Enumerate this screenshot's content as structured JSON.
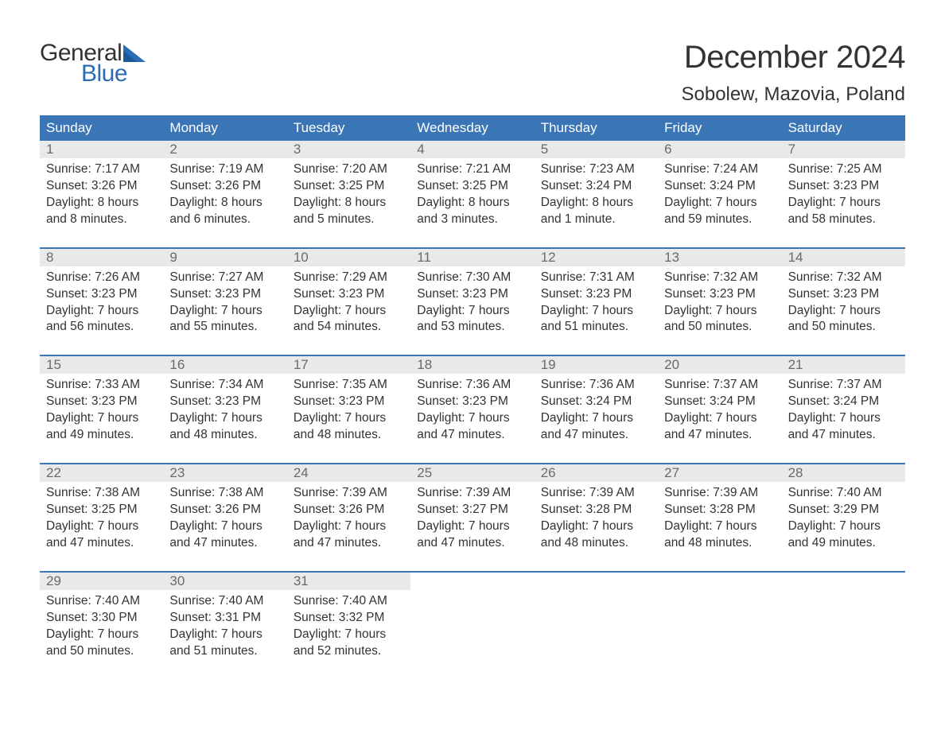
{
  "logo": {
    "word1": "General",
    "word2": "Blue",
    "icon_color": "#2a6db5"
  },
  "title": "December 2024",
  "location": "Sobolew, Mazovia, Poland",
  "colors": {
    "header_bg": "#3a76b6",
    "header_text": "#ffffff",
    "daynum_bg": "#e9e9e9",
    "daynum_text": "#6a6a6a",
    "body_text": "#333333",
    "week_border": "#3a76b6",
    "brand_blue": "#2a6db5",
    "page_bg": "#ffffff"
  },
  "day_names": [
    "Sunday",
    "Monday",
    "Tuesday",
    "Wednesday",
    "Thursday",
    "Friday",
    "Saturday"
  ],
  "weeks": [
    [
      {
        "day": "1",
        "sunrise": "Sunrise: 7:17 AM",
        "sunset": "Sunset: 3:26 PM",
        "dl1": "Daylight: 8 hours",
        "dl2": "and 8 minutes."
      },
      {
        "day": "2",
        "sunrise": "Sunrise: 7:19 AM",
        "sunset": "Sunset: 3:26 PM",
        "dl1": "Daylight: 8 hours",
        "dl2": "and 6 minutes."
      },
      {
        "day": "3",
        "sunrise": "Sunrise: 7:20 AM",
        "sunset": "Sunset: 3:25 PM",
        "dl1": "Daylight: 8 hours",
        "dl2": "and 5 minutes."
      },
      {
        "day": "4",
        "sunrise": "Sunrise: 7:21 AM",
        "sunset": "Sunset: 3:25 PM",
        "dl1": "Daylight: 8 hours",
        "dl2": "and 3 minutes."
      },
      {
        "day": "5",
        "sunrise": "Sunrise: 7:23 AM",
        "sunset": "Sunset: 3:24 PM",
        "dl1": "Daylight: 8 hours",
        "dl2": "and 1 minute."
      },
      {
        "day": "6",
        "sunrise": "Sunrise: 7:24 AM",
        "sunset": "Sunset: 3:24 PM",
        "dl1": "Daylight: 7 hours",
        "dl2": "and 59 minutes."
      },
      {
        "day": "7",
        "sunrise": "Sunrise: 7:25 AM",
        "sunset": "Sunset: 3:23 PM",
        "dl1": "Daylight: 7 hours",
        "dl2": "and 58 minutes."
      }
    ],
    [
      {
        "day": "8",
        "sunrise": "Sunrise: 7:26 AM",
        "sunset": "Sunset: 3:23 PM",
        "dl1": "Daylight: 7 hours",
        "dl2": "and 56 minutes."
      },
      {
        "day": "9",
        "sunrise": "Sunrise: 7:27 AM",
        "sunset": "Sunset: 3:23 PM",
        "dl1": "Daylight: 7 hours",
        "dl2": "and 55 minutes."
      },
      {
        "day": "10",
        "sunrise": "Sunrise: 7:29 AM",
        "sunset": "Sunset: 3:23 PM",
        "dl1": "Daylight: 7 hours",
        "dl2": "and 54 minutes."
      },
      {
        "day": "11",
        "sunrise": "Sunrise: 7:30 AM",
        "sunset": "Sunset: 3:23 PM",
        "dl1": "Daylight: 7 hours",
        "dl2": "and 53 minutes."
      },
      {
        "day": "12",
        "sunrise": "Sunrise: 7:31 AM",
        "sunset": "Sunset: 3:23 PM",
        "dl1": "Daylight: 7 hours",
        "dl2": "and 51 minutes."
      },
      {
        "day": "13",
        "sunrise": "Sunrise: 7:32 AM",
        "sunset": "Sunset: 3:23 PM",
        "dl1": "Daylight: 7 hours",
        "dl2": "and 50 minutes."
      },
      {
        "day": "14",
        "sunrise": "Sunrise: 7:32 AM",
        "sunset": "Sunset: 3:23 PM",
        "dl1": "Daylight: 7 hours",
        "dl2": "and 50 minutes."
      }
    ],
    [
      {
        "day": "15",
        "sunrise": "Sunrise: 7:33 AM",
        "sunset": "Sunset: 3:23 PM",
        "dl1": "Daylight: 7 hours",
        "dl2": "and 49 minutes."
      },
      {
        "day": "16",
        "sunrise": "Sunrise: 7:34 AM",
        "sunset": "Sunset: 3:23 PM",
        "dl1": "Daylight: 7 hours",
        "dl2": "and 48 minutes."
      },
      {
        "day": "17",
        "sunrise": "Sunrise: 7:35 AM",
        "sunset": "Sunset: 3:23 PM",
        "dl1": "Daylight: 7 hours",
        "dl2": "and 48 minutes."
      },
      {
        "day": "18",
        "sunrise": "Sunrise: 7:36 AM",
        "sunset": "Sunset: 3:23 PM",
        "dl1": "Daylight: 7 hours",
        "dl2": "and 47 minutes."
      },
      {
        "day": "19",
        "sunrise": "Sunrise: 7:36 AM",
        "sunset": "Sunset: 3:24 PM",
        "dl1": "Daylight: 7 hours",
        "dl2": "and 47 minutes."
      },
      {
        "day": "20",
        "sunrise": "Sunrise: 7:37 AM",
        "sunset": "Sunset: 3:24 PM",
        "dl1": "Daylight: 7 hours",
        "dl2": "and 47 minutes."
      },
      {
        "day": "21",
        "sunrise": "Sunrise: 7:37 AM",
        "sunset": "Sunset: 3:24 PM",
        "dl1": "Daylight: 7 hours",
        "dl2": "and 47 minutes."
      }
    ],
    [
      {
        "day": "22",
        "sunrise": "Sunrise: 7:38 AM",
        "sunset": "Sunset: 3:25 PM",
        "dl1": "Daylight: 7 hours",
        "dl2": "and 47 minutes."
      },
      {
        "day": "23",
        "sunrise": "Sunrise: 7:38 AM",
        "sunset": "Sunset: 3:26 PM",
        "dl1": "Daylight: 7 hours",
        "dl2": "and 47 minutes."
      },
      {
        "day": "24",
        "sunrise": "Sunrise: 7:39 AM",
        "sunset": "Sunset: 3:26 PM",
        "dl1": "Daylight: 7 hours",
        "dl2": "and 47 minutes."
      },
      {
        "day": "25",
        "sunrise": "Sunrise: 7:39 AM",
        "sunset": "Sunset: 3:27 PM",
        "dl1": "Daylight: 7 hours",
        "dl2": "and 47 minutes."
      },
      {
        "day": "26",
        "sunrise": "Sunrise: 7:39 AM",
        "sunset": "Sunset: 3:28 PM",
        "dl1": "Daylight: 7 hours",
        "dl2": "and 48 minutes."
      },
      {
        "day": "27",
        "sunrise": "Sunrise: 7:39 AM",
        "sunset": "Sunset: 3:28 PM",
        "dl1": "Daylight: 7 hours",
        "dl2": "and 48 minutes."
      },
      {
        "day": "28",
        "sunrise": "Sunrise: 7:40 AM",
        "sunset": "Sunset: 3:29 PM",
        "dl1": "Daylight: 7 hours",
        "dl2": "and 49 minutes."
      }
    ],
    [
      {
        "day": "29",
        "sunrise": "Sunrise: 7:40 AM",
        "sunset": "Sunset: 3:30 PM",
        "dl1": "Daylight: 7 hours",
        "dl2": "and 50 minutes."
      },
      {
        "day": "30",
        "sunrise": "Sunrise: 7:40 AM",
        "sunset": "Sunset: 3:31 PM",
        "dl1": "Daylight: 7 hours",
        "dl2": "and 51 minutes."
      },
      {
        "day": "31",
        "sunrise": "Sunrise: 7:40 AM",
        "sunset": "Sunset: 3:32 PM",
        "dl1": "Daylight: 7 hours",
        "dl2": "and 52 minutes."
      },
      null,
      null,
      null,
      null
    ]
  ]
}
